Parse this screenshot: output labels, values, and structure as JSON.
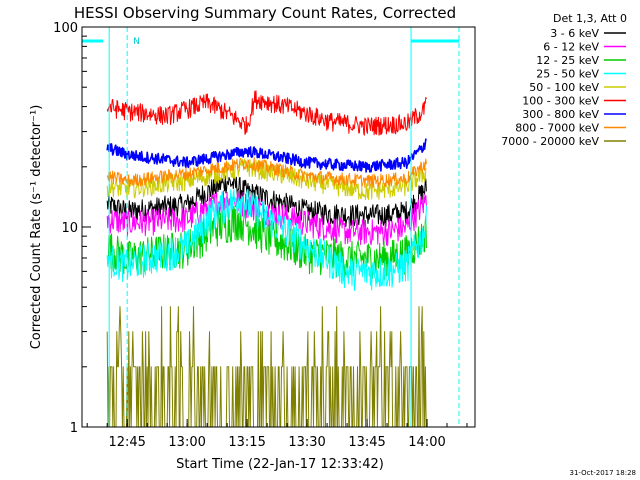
{
  "chart_data": {
    "type": "line",
    "title": "HESSI Observing Summary Count Rates, Corrected",
    "xlabel": "Start Time (22-Jan-17 12:33:42)",
    "ylabel": "Corrected Count Rate (s⁻¹ detector⁻¹)",
    "y_scale": "log",
    "ylim": [
      1,
      100
    ],
    "xlim": [
      "12:33:42",
      "14:12:00"
    ],
    "x_ticks": [
      "12:45",
      "13:00",
      "13:15",
      "13:30",
      "13:45",
      "14:00"
    ],
    "y_ticks": [
      "1",
      "10",
      "100"
    ],
    "timestamp": "31-Oct-2017 18:28",
    "legend": {
      "title": "Det 1,3, Att 0",
      "position": "right",
      "entries": [
        {
          "label": "3 - 6 keV",
          "color": "#000000"
        },
        {
          "label": "6 - 12 keV",
          "color": "#ff00ff"
        },
        {
          "label": "12 - 25 keV",
          "color": "#00cc00"
        },
        {
          "label": "25 - 50 keV",
          "color": "#00ffff"
        },
        {
          "label": "50 - 100 keV",
          "color": "#cccc00"
        },
        {
          "label": "100 - 300 keV",
          "color": "#ff0000"
        },
        {
          "label": "300 - 800 keV",
          "color": "#0000ff"
        },
        {
          "label": "800 - 7000 keV",
          "color": "#ff8800"
        },
        {
          "label": "7000 - 20000 keV",
          "color": "#808000"
        }
      ]
    },
    "annotations": {
      "night_label": "N",
      "intervals": [
        {
          "start": "12:33:42",
          "end": "12:39:00",
          "color": "#00ffff"
        },
        {
          "start": "13:56:00",
          "end": "14:08:00",
          "color": "#00ffff"
        }
      ],
      "data_gap_markers": [
        "12:40:30",
        "12:45:00",
        "13:56:00",
        "14:08:00"
      ]
    },
    "series": [
      {
        "label": "3 - 6 keV",
        "color": "#000000",
        "noise": 0.06,
        "x": [
          "12:40",
          "12:45",
          "13:00",
          "13:10",
          "13:15",
          "13:20",
          "13:30",
          "13:40",
          "13:50",
          "13:55",
          "13:59",
          "14:00"
        ],
        "y": [
          13,
          12,
          13,
          17,
          15,
          14,
          12,
          11.5,
          11.5,
          12,
          15,
          16
        ]
      },
      {
        "label": "6 - 12 keV",
        "color": "#ff00ff",
        "noise": 0.07,
        "x": [
          "12:40",
          "12:45",
          "13:00",
          "13:10",
          "13:15",
          "13:20",
          "13:30",
          "13:40",
          "13:50",
          "13:55",
          "13:59",
          "14:00"
        ],
        "y": [
          11,
          10.5,
          11,
          14,
          13,
          12,
          10.5,
          9.5,
          9.5,
          10,
          13,
          14
        ]
      },
      {
        "label": "12 - 25 keV",
        "color": "#00cc00",
        "noise": 0.1,
        "x": [
          "12:40",
          "12:45",
          "13:00",
          "13:07",
          "13:13",
          "13:20",
          "13:30",
          "13:40",
          "13:50",
          "13:55",
          "13:59",
          "14:00"
        ],
        "y": [
          8,
          7,
          8,
          10,
          11,
          9,
          7.5,
          7,
          7,
          7.5,
          9,
          10
        ]
      },
      {
        "label": "25 - 50 keV",
        "color": "#00ffff",
        "noise": 0.09,
        "x": [
          "12:40",
          "12:45",
          "13:00",
          "13:07",
          "13:13",
          "13:20",
          "13:30",
          "13:40",
          "13:50",
          "13:55",
          "13:59",
          "14:00"
        ],
        "y": [
          7,
          6.5,
          8,
          12,
          14,
          11,
          8,
          6,
          6,
          6.5,
          9,
          11
        ]
      },
      {
        "label": "50 - 100 keV",
        "color": "#cccc00",
        "noise": 0.05,
        "x": [
          "12:40",
          "12:45",
          "13:00",
          "13:15",
          "13:30",
          "13:45",
          "13:55",
          "14:00"
        ],
        "y": [
          16,
          15.5,
          17,
          20,
          17,
          15,
          16,
          19
        ]
      },
      {
        "label": "100 - 300 keV",
        "color": "#ff0000",
        "noise": 0.05,
        "x": [
          "12:40",
          "12:45",
          "12:55",
          "13:05",
          "13:15",
          "13:17",
          "13:25",
          "13:35",
          "13:45",
          "13:55",
          "13:59",
          "14:00"
        ],
        "y": [
          40,
          38,
          36,
          42,
          32,
          44,
          40,
          34,
          32,
          33,
          38,
          42
        ]
      },
      {
        "label": "300 - 800 keV",
        "color": "#0000ff",
        "noise": 0.03,
        "x": [
          "12:40",
          "12:45",
          "13:00",
          "13:15",
          "13:30",
          "13:45",
          "13:55",
          "13:59",
          "14:00"
        ],
        "y": [
          25,
          23,
          21,
          24,
          21,
          20,
          21,
          25,
          28
        ]
      },
      {
        "label": "800 - 7000 keV",
        "color": "#ff8800",
        "noise": 0.035,
        "x": [
          "12:40",
          "12:45",
          "13:00",
          "13:15",
          "13:30",
          "13:45",
          "13:55",
          "14:00"
        ],
        "y": [
          18,
          17,
          18.5,
          21,
          18,
          17,
          17.5,
          21
        ]
      },
      {
        "label": "7000 - 20000 keV",
        "color": "#808000",
        "noise": 0,
        "x": [
          "12:40",
          "12:45",
          "13:00",
          "13:15",
          "13:30",
          "13:45",
          "13:55",
          "14:00"
        ],
        "y": [
          1.2,
          1.2,
          1.4,
          1.5,
          1.2,
          1.2,
          1.6,
          2.0
        ]
      }
    ]
  }
}
